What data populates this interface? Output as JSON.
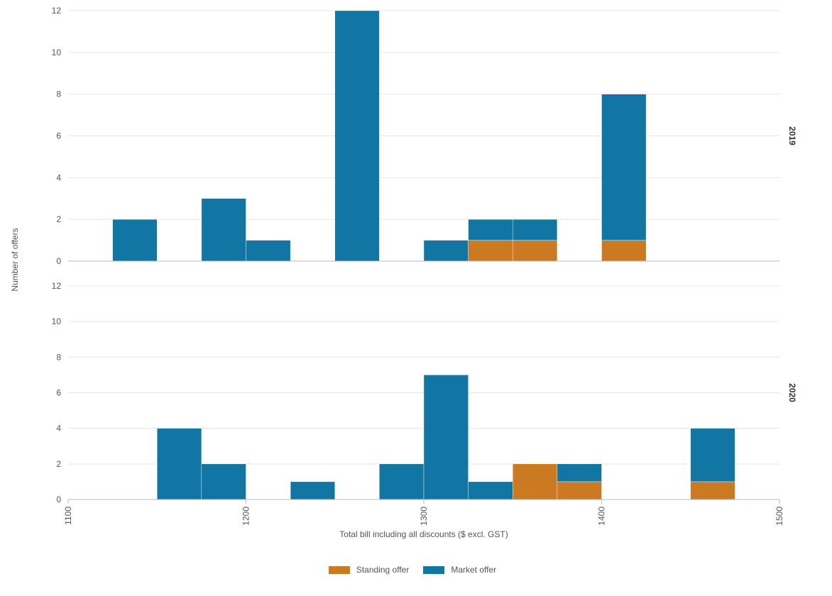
{
  "chart_data": {
    "type": "bar",
    "subtype": "stacked-histogram-faceted",
    "xlabel": "Total bill including all discounts ($ excl. GST)",
    "ylabel": "Number of offers",
    "xlim": [
      1100,
      1500
    ],
    "xticks": [
      1100,
      1200,
      1300,
      1400,
      1500
    ],
    "bin_width": 25,
    "ylim": [
      0,
      12
    ],
    "yticks": [
      0,
      2,
      4,
      6,
      8,
      10,
      12
    ],
    "grid": true,
    "legend_position": "bottom-center",
    "series": [
      {
        "name": "Standing offer",
        "color": "#cc7a22"
      },
      {
        "name": "Market offer",
        "color": "#1176a3"
      }
    ],
    "facets": [
      {
        "label": "2019",
        "bins": [
          {
            "x0": 1125,
            "x1": 1150,
            "standing": 0,
            "market": 2
          },
          {
            "x0": 1175,
            "x1": 1200,
            "standing": 0,
            "market": 3
          },
          {
            "x0": 1200,
            "x1": 1225,
            "standing": 0,
            "market": 1
          },
          {
            "x0": 1250,
            "x1": 1275,
            "standing": 0,
            "market": 12
          },
          {
            "x0": 1300,
            "x1": 1325,
            "standing": 0,
            "market": 1
          },
          {
            "x0": 1325,
            "x1": 1350,
            "standing": 1,
            "market": 1
          },
          {
            "x0": 1350,
            "x1": 1375,
            "standing": 1,
            "market": 1
          },
          {
            "x0": 1400,
            "x1": 1425,
            "standing": 1,
            "market": 7
          }
        ]
      },
      {
        "label": "2020",
        "bins": [
          {
            "x0": 1150,
            "x1": 1175,
            "standing": 0,
            "market": 4
          },
          {
            "x0": 1175,
            "x1": 1200,
            "standing": 0,
            "market": 2
          },
          {
            "x0": 1225,
            "x1": 1250,
            "standing": 0,
            "market": 1
          },
          {
            "x0": 1275,
            "x1": 1300,
            "standing": 0,
            "market": 2
          },
          {
            "x0": 1300,
            "x1": 1325,
            "standing": 0,
            "market": 7
          },
          {
            "x0": 1325,
            "x1": 1350,
            "standing": 0,
            "market": 1
          },
          {
            "x0": 1350,
            "x1": 1375,
            "standing": 2,
            "market": 0
          },
          {
            "x0": 1375,
            "x1": 1400,
            "standing": 1,
            "market": 1
          },
          {
            "x0": 1450,
            "x1": 1475,
            "standing": 1,
            "market": 3
          }
        ]
      }
    ]
  }
}
